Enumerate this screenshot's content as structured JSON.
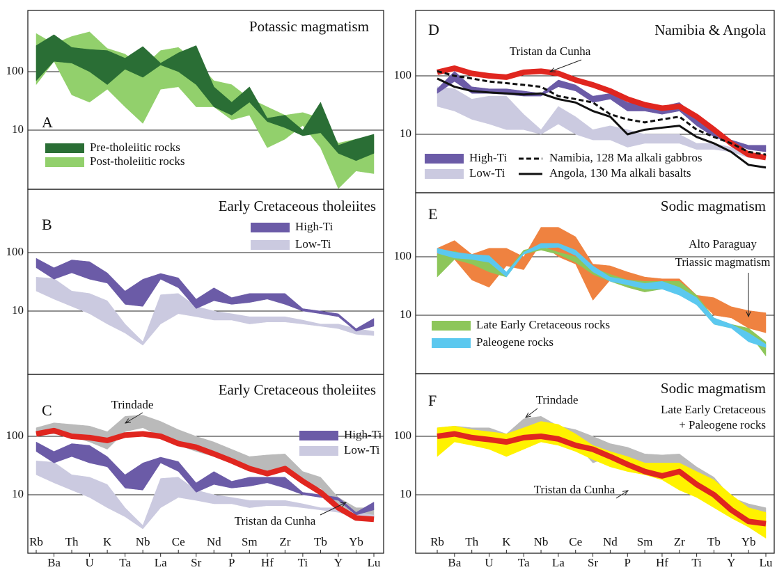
{
  "chart_data": [
    {
      "type": "spider",
      "title": "Potassic magmatism",
      "label": "A",
      "log": true,
      "ylim": [
        1,
        1000
      ],
      "yticks": [
        10,
        100
      ],
      "grid": true,
      "series": [
        {
          "name": "Post-tholeiitic rocks",
          "color": "#92d06c",
          "max": [
            450,
            300,
            400,
            480,
            250,
            200,
            120,
            230,
            260,
            150,
            70,
            60,
            35,
            25,
            18,
            20,
            16,
            6,
            7,
            8
          ],
          "min": [
            60,
            150,
            40,
            30,
            50,
            25,
            13,
            50,
            55,
            25,
            25,
            15,
            18,
            5,
            7,
            12,
            5,
            1,
            2,
            1.8
          ]
        },
        {
          "name": "Pre-tholeiitic rocks",
          "color": "#2a6e35",
          "max": [
            280,
            430,
            260,
            240,
            230,
            170,
            270,
            140,
            210,
            280,
            55,
            30,
            55,
            16,
            18,
            10,
            30,
            5.5,
            7,
            8.5
          ],
          "min": [
            70,
            150,
            140,
            100,
            60,
            110,
            80,
            130,
            100,
            60,
            25,
            18,
            30,
            14,
            11,
            8,
            9,
            4,
            3,
            4
          ]
        }
      ],
      "annotations": []
    },
    {
      "type": "spider",
      "title": "Early Cretaceous tholeiites",
      "label": "B",
      "log": true,
      "ylim": [
        1,
        1000
      ],
      "yticks": [
        10,
        100
      ],
      "grid": true,
      "series": [
        {
          "name": "Low-Ti",
          "color": "#cbcae0",
          "max": [
            38,
            36,
            22,
            20,
            15,
            6,
            3,
            19,
            20,
            12,
            10,
            9,
            8,
            8,
            8,
            7,
            6,
            6,
            5,
            4.5
          ],
          "min": [
            22,
            16,
            12,
            9,
            6,
            4.2,
            2.6,
            6,
            9,
            8,
            7,
            7,
            6,
            6.5,
            6.5,
            6,
            5.5,
            5,
            4,
            3.8
          ]
        },
        {
          "name": "High-Ti",
          "color": "#6b5ba7",
          "max": [
            80,
            55,
            75,
            70,
            45,
            22,
            35,
            44,
            37,
            16,
            25,
            17,
            20,
            20,
            20,
            11,
            10,
            9,
            5,
            7.5
          ],
          "min": [
            55,
            35,
            45,
            35,
            30,
            13,
            12,
            35,
            25,
            11,
            15,
            13,
            14,
            16,
            13,
            10,
            9,
            8,
            4.5,
            5.5
          ]
        }
      ],
      "annotations": []
    },
    {
      "type": "spider",
      "title": "Early Cretaceous tholeiites",
      "label": "C",
      "log": true,
      "ylim": [
        1,
        1000
      ],
      "yticks": [
        10,
        100
      ],
      "grid": true,
      "categories": [
        "Rb",
        "Ba",
        "Th",
        "U",
        "K",
        "Ta",
        "Nb",
        "La",
        "Ce",
        "Sr",
        "Nd",
        "P",
        "Sm",
        "Hf",
        "Zr",
        "Ti",
        "Tb",
        "Y",
        "Yb",
        "Lu"
      ],
      "series": [
        {
          "color": "#bababa",
          "max": [
            140,
            170,
            160,
            150,
            120,
            220,
            230,
            180,
            130,
            100,
            80,
            60,
            45,
            48,
            50,
            25,
            20,
            9,
            6,
            6
          ],
          "min": [
            110,
            110,
            100,
            80,
            60,
            120,
            140,
            100,
            70,
            55,
            45,
            35,
            30,
            25,
            30,
            15,
            13,
            6,
            4.5,
            4
          ]
        },
        {
          "name": "Low-Ti",
          "color": "#cbcae0",
          "max": [
            38,
            36,
            22,
            20,
            15,
            6,
            3,
            19,
            20,
            12,
            10,
            9,
            8,
            8,
            8,
            7,
            6,
            6,
            5,
            4.5
          ],
          "min": [
            22,
            16,
            12,
            9,
            6,
            4.2,
            2.6,
            6,
            9,
            8,
            7,
            7,
            6,
            6.5,
            6.5,
            6,
            5.5,
            5,
            4,
            3.8
          ]
        },
        {
          "name": "High-Ti",
          "color": "#6b5ba7",
          "max": [
            80,
            55,
            75,
            70,
            45,
            22,
            35,
            44,
            37,
            16,
            25,
            17,
            20,
            20,
            20,
            11,
            10,
            9,
            5,
            7.5
          ],
          "min": [
            55,
            35,
            45,
            35,
            30,
            13,
            12,
            35,
            25,
            11,
            15,
            13,
            14,
            16,
            13,
            10,
            9,
            8,
            4.5,
            5.5
          ]
        },
        {
          "color": "#e0261f",
          "line_width": 8,
          "values": [
            110,
            125,
            100,
            95,
            85,
            105,
            110,
            100,
            75,
            65,
            50,
            38,
            28,
            23,
            28,
            17,
            11,
            6,
            4,
            3.8
          ]
        }
      ],
      "annotations": [
        {
          "text": "Trindade"
        },
        {
          "text": "Tristan da Cunha"
        }
      ]
    },
    {
      "type": "spider",
      "title": "Namibia & Angola",
      "label": "D",
      "log": true,
      "ylim": [
        1,
        1000
      ],
      "yticks": [
        10,
        100
      ],
      "grid": true,
      "series": [
        {
          "name": "Low-Ti",
          "color": "#cbcae0",
          "max": [
            65,
            60,
            40,
            45,
            45,
            22,
            12,
            30,
            20,
            12,
            14,
            12,
            10,
            10,
            10,
            7,
            7,
            6,
            5,
            4.2
          ],
          "min": [
            30,
            25,
            18,
            15,
            12,
            12,
            10,
            15,
            10,
            8,
            8,
            6,
            7,
            7,
            7,
            5.5,
            5.5,
            5,
            4,
            3.8
          ]
        },
        {
          "name": "High-Ti",
          "color": "#6b5ba7",
          "max": [
            60,
            120,
            65,
            60,
            60,
            55,
            50,
            85,
            70,
            45,
            50,
            35,
            32,
            30,
            35,
            20,
            12,
            8,
            6.5,
            6.5
          ],
          "min": [
            50,
            80,
            50,
            50,
            48,
            45,
            45,
            65,
            55,
            35,
            40,
            25,
            25,
            22,
            25,
            14,
            9,
            7,
            5.5,
            5
          ]
        },
        {
          "color": "#e0261f",
          "line_width": 8,
          "values": [
            115,
            135,
            110,
            100,
            95,
            115,
            120,
            110,
            85,
            70,
            55,
            40,
            32,
            28,
            30,
            20,
            12,
            7,
            4.5,
            4
          ]
        },
        {
          "name": "Namibia, 128 Ma alkali gabbros",
          "color": "#111111",
          "line_width": 3,
          "dashed": true,
          "values": [
            120,
            100,
            90,
            80,
            75,
            70,
            65,
            45,
            40,
            35,
            22,
            18,
            16,
            18,
            20,
            12,
            9,
            7,
            5,
            4.5
          ]
        },
        {
          "name": "Angola, 130 Ma alkali basalts",
          "color": "#111111",
          "line_width": 3,
          "values": [
            90,
            65,
            55,
            52,
            50,
            48,
            50,
            40,
            35,
            25,
            20,
            10,
            12,
            13,
            14,
            9,
            7,
            5,
            3,
            2.7
          ]
        }
      ],
      "annotations": [
        {
          "text": "Tristan da Cunha"
        }
      ]
    },
    {
      "type": "spider",
      "title": "Sodic magmatism",
      "label": "E",
      "log": true,
      "ylim": [
        1,
        1000
      ],
      "yticks": [
        10,
        100
      ],
      "grid": true,
      "series": [
        {
          "color": "#ef8240",
          "max": [
            140,
            190,
            110,
            140,
            140,
            100,
            320,
            320,
            220,
            75,
            70,
            55,
            45,
            42,
            42,
            22,
            20,
            14,
            12,
            11
          ],
          "min": [
            100,
            90,
            40,
            30,
            70,
            60,
            170,
            100,
            75,
            18,
            40,
            30,
            25,
            30,
            25,
            20,
            10,
            9,
            6,
            5
          ]
        },
        {
          "name": "Late Early Cretaceous rocks",
          "color": "#8dc65a",
          "max": [
            110,
            125,
            100,
            90,
            55,
            130,
            150,
            120,
            100,
            65,
            50,
            40,
            38,
            38,
            38,
            22,
            9,
            7,
            6,
            3.5
          ],
          "min": [
            45,
            90,
            75,
            55,
            45,
            110,
            130,
            110,
            80,
            50,
            38,
            30,
            25,
            28,
            25,
            15,
            7,
            6,
            5,
            2
          ]
        },
        {
          "name": "Paleogene rocks",
          "color": "#5bc8ef",
          "max": [
            140,
            120,
            110,
            105,
            55,
            120,
            170,
            170,
            130,
            70,
            45,
            40,
            35,
            38,
            30,
            20,
            9,
            7,
            5,
            3.2
          ],
          "min": [
            115,
            95,
            90,
            80,
            45,
            110,
            140,
            145,
            105,
            55,
            38,
            33,
            28,
            28,
            22,
            15,
            7,
            6,
            3.5,
            2.8
          ]
        }
      ],
      "annotations": [
        {
          "text": "Alto Paraguay"
        },
        {
          "text": "Triassic magmatism"
        }
      ]
    },
    {
      "type": "spider",
      "title": "Sodic magmatism",
      "label": "F",
      "log": true,
      "ylim": [
        1,
        1000
      ],
      "yticks": [
        10,
        100
      ],
      "grid": true,
      "categories": [
        "Rb",
        "Ba",
        "Th",
        "U",
        "K",
        "Ta",
        "Nb",
        "La",
        "Ce",
        "Sr",
        "Nd",
        "P",
        "Sm",
        "Hf",
        "Zr",
        "Ti",
        "Tb",
        "Y",
        "Yb",
        "Lu"
      ],
      "series": [
        {
          "color": "#bababa",
          "max": [
            140,
            150,
            140,
            140,
            110,
            200,
            220,
            150,
            130,
            100,
            75,
            65,
            50,
            48,
            50,
            30,
            20,
            9,
            7,
            6
          ],
          "min": [
            100,
            100,
            90,
            80,
            60,
            110,
            130,
            100,
            75,
            35,
            45,
            35,
            27,
            25,
            27,
            18,
            12,
            6,
            4.5,
            4
          ]
        },
        {
          "color": "#fff200",
          "max": [
            140,
            150,
            130,
            120,
            110,
            140,
            180,
            160,
            110,
            70,
            55,
            45,
            35,
            35,
            35,
            25,
            18,
            10,
            6,
            5
          ],
          "min": [
            45,
            80,
            70,
            60,
            45,
            60,
            80,
            70,
            55,
            40,
            30,
            25,
            22,
            18,
            12,
            9,
            6,
            4,
            2.8,
            1.8
          ]
        },
        {
          "color": "#e0261f",
          "line_width": 8,
          "values": [
            100,
            110,
            95,
            88,
            80,
            95,
            100,
            90,
            70,
            60,
            45,
            33,
            25,
            21,
            25,
            15,
            10,
            5.5,
            3.5,
            3.2
          ]
        }
      ],
      "annotations": [
        {
          "text": "Trindade"
        },
        {
          "text": "Late Early Cretaceous"
        },
        {
          "text": "+ Paleogene rocks"
        },
        {
          "text": "Tristan da Cunha"
        }
      ]
    }
  ]
}
